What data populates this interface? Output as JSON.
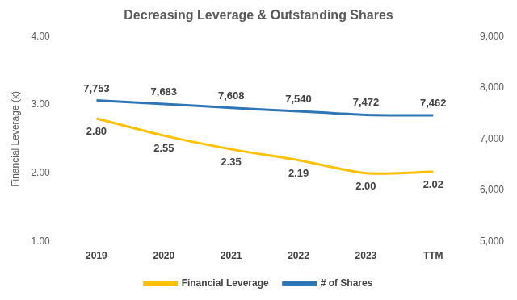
{
  "chart_data": {
    "type": "line",
    "title": "Decreasing Leverage & Outstanding Shares",
    "ylabel": "Financial Leverage (x)",
    "categories": [
      "2019",
      "2020",
      "2021",
      "2022",
      "2023",
      "TTM"
    ],
    "series": [
      {
        "name": "Financial Leverage",
        "color": "#FFC000",
        "axis": "y",
        "values": [
          2.8,
          2.55,
          2.35,
          2.19,
          2.0,
          2.02
        ],
        "value_labels": [
          "2.80",
          "2.55",
          "2.35",
          "2.19",
          "2.00",
          "2.02"
        ]
      },
      {
        "name": "# of Shares",
        "color": "#2E75B6",
        "axis": "y2",
        "values": [
          7753,
          7683,
          7608,
          7540,
          7472,
          7462
        ],
        "value_labels": [
          "7,753",
          "7,683",
          "7,608",
          "7,540",
          "7,472",
          "7,462"
        ]
      }
    ],
    "ylim": [
      1,
      4
    ],
    "yticks": [
      {
        "value": 1,
        "label": "1.00"
      },
      {
        "value": 2,
        "label": "2.00"
      },
      {
        "value": 3,
        "label": "3.00"
      },
      {
        "value": 4,
        "label": "4.00"
      }
    ],
    "y2lim": [
      5000,
      9000
    ],
    "y2ticks": [
      {
        "value": 5000,
        "label": "5,000"
      },
      {
        "value": 6000,
        "label": "6,000"
      },
      {
        "value": 7000,
        "label": "7,000"
      },
      {
        "value": 8000,
        "label": "8,000"
      },
      {
        "value": 9000,
        "label": "9,000"
      }
    ],
    "grid": false,
    "legend": "bottom",
    "data_labels": true
  }
}
